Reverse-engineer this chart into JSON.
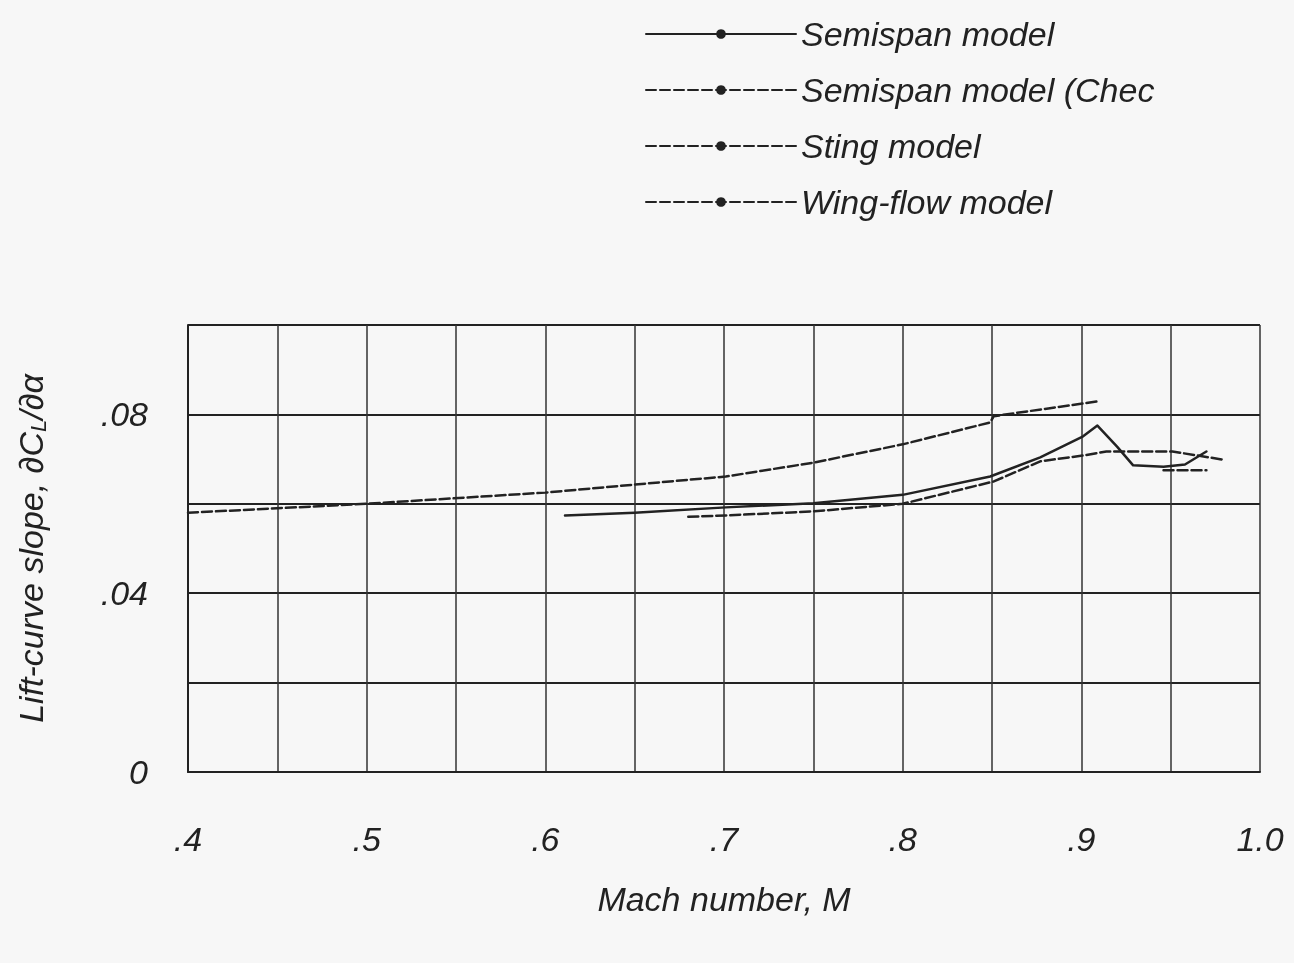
{
  "chart_data": {
    "type": "line",
    "xlabel": "Mach number, M",
    "ylabel": "Lift-curve slope, ∂C$_{L}$/∂α",
    "xlim": [
      0.4,
      1.0
    ],
    "xticks": [
      {
        "value": 0.4,
        "label": ".4"
      },
      {
        "value": 0.45,
        "label": null
      },
      {
        "value": 0.5,
        "label": ".5"
      },
      {
        "value": 0.55,
        "label": null
      },
      {
        "value": 0.6,
        "label": ".6"
      },
      {
        "value": 0.65,
        "label": null
      },
      {
        "value": 0.7,
        "label": ".7"
      },
      {
        "value": 0.75,
        "label": null
      },
      {
        "value": 0.8,
        "label": ".8"
      },
      {
        "value": 0.85,
        "label": null
      },
      {
        "value": 0.9,
        "label": ".9"
      },
      {
        "value": 0.95,
        "label": null
      },
      {
        "value": 1.0,
        "label": "1.0"
      }
    ],
    "ylim": [
      0,
      0.1
    ],
    "yticks": [
      0,
      {
        "value": 0.02,
        "label": null
      },
      {
        "value": 0.04,
        "label": ".04"
      },
      {
        "value": 0.06,
        "label": null
      },
      {
        "value": 0.08,
        "label": ".08"
      },
      {
        "value": 0.1,
        "label": null
      }
    ],
    "grid": true,
    "legend": "top right",
    "marker": "none",
    "series": [
      {
        "name": "Semispan model",
        "color": "#222222",
        "line_style": "solid",
        "x": [
          0.611,
          0.65,
          0.701,
          0.75,
          0.8,
          0.849,
          0.877,
          0.901,
          0.909,
          0.92,
          0.929,
          0.946,
          0.958,
          0.97
        ],
        "values": [
          0.0574,
          0.058,
          0.0592,
          0.0601,
          0.062,
          0.0661,
          0.0704,
          0.0751,
          0.0775,
          0.0728,
          0.0686,
          0.0683,
          0.0688,
          0.0717
        ]
      },
      {
        "name": "Semispan model (Chec",
        "color": "#222222",
        "line_style": "dashed",
        "x": [
          0.946,
          0.97
        ],
        "values": [
          0.0675,
          0.0675
        ]
      },
      {
        "name": "Sting model",
        "color": "#222222",
        "line_style": "dashed",
        "x": [
          0.68,
          0.701,
          0.75,
          0.8,
          0.851,
          0.877,
          0.901,
          0.914,
          0.951,
          0.979
        ],
        "values": [
          0.0571,
          0.0574,
          0.0583,
          0.06,
          0.065,
          0.0695,
          0.0708,
          0.0717,
          0.0717,
          0.0699
        ]
      },
      {
        "name": "Wing-flow model",
        "color": "#222222",
        "line_style": "dashed",
        "x": [
          0.4,
          0.5,
          0.6,
          0.65,
          0.701,
          0.75,
          0.8,
          0.849,
          0.851,
          0.909
        ],
        "values": [
          0.058,
          0.06,
          0.0625,
          0.0643,
          0.0661,
          0.0692,
          0.0733,
          0.0782,
          0.0796,
          0.0829
        ]
      }
    ]
  }
}
